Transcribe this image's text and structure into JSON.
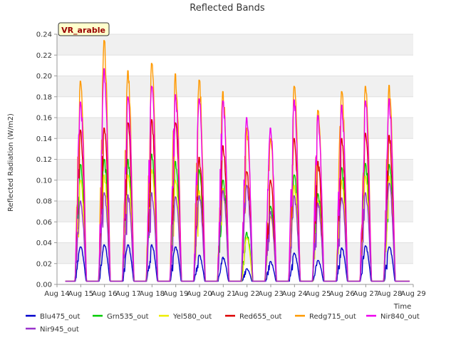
{
  "chart_data": {
    "type": "line",
    "title": "Reflected Bands",
    "xlabel": "Time",
    "ylabel": "Reflected Radiation (W/m2)",
    "ylim": [
      0,
      0.24
    ],
    "yticks": [
      "0.00",
      "0.02",
      "0.04",
      "0.06",
      "0.08",
      "0.10",
      "0.12",
      "0.14",
      "0.16",
      "0.18",
      "0.20",
      "0.22",
      "0.24"
    ],
    "xlim": [
      14,
      29
    ],
    "xticks": [
      "Aug 14",
      "Aug 15",
      "Aug 16",
      "Aug 17",
      "Aug 18",
      "Aug 19",
      "Aug 20",
      "Aug 21",
      "Aug 22",
      "Aug 23",
      "Aug 24",
      "Aug 25",
      "Aug 26",
      "Aug 27",
      "Aug 28",
      "Aug 29"
    ],
    "grid": "horizontal bands",
    "legend_position": "bottom",
    "annotation": "VR_arable",
    "day_start": 14.35,
    "day_end": 28.85,
    "night_value": 0.003,
    "days": [
      15,
      16,
      17,
      18,
      19,
      20,
      21,
      22,
      23,
      24,
      25,
      26,
      27,
      28
    ],
    "series": [
      {
        "name": "Blu475_out",
        "color": "#0000cc",
        "peaks": [
          0.036,
          0.038,
          0.038,
          0.038,
          0.036,
          0.028,
          0.026,
          0.015,
          0.022,
          0.03,
          0.023,
          0.035,
          0.037,
          0.036
        ]
      },
      {
        "name": "Grn535_out",
        "color": "#00cc00",
        "peaks": [
          0.115,
          0.12,
          0.12,
          0.125,
          0.118,
          0.11,
          0.1,
          0.05,
          0.075,
          0.105,
          0.087,
          0.112,
          0.116,
          0.115
        ]
      },
      {
        "name": "Yel580_out",
        "color": "#eeee00",
        "peaks": [
          0.1,
          0.105,
          0.105,
          0.11,
          0.1,
          0.09,
          0.092,
          0.045,
          0.065,
          0.095,
          0.08,
          0.1,
          0.104,
          0.104
        ]
      },
      {
        "name": "Red655_out",
        "color": "#dd0000",
        "peaks": [
          0.148,
          0.15,
          0.155,
          0.158,
          0.155,
          0.122,
          0.133,
          0.108,
          0.1,
          0.14,
          0.118,
          0.14,
          0.145,
          0.143
        ]
      },
      {
        "name": "Redg715_out",
        "color": "#ff9900",
        "peaks": [
          0.195,
          0.234,
          0.205,
          0.212,
          0.202,
          0.196,
          0.185,
          0.15,
          0.14,
          0.19,
          0.167,
          0.185,
          0.19,
          0.191
        ]
      },
      {
        "name": "Nir840_out",
        "color": "#ee00ee",
        "peaks": [
          0.175,
          0.207,
          0.18,
          0.19,
          0.182,
          0.178,
          0.176,
          0.16,
          0.15,
          0.177,
          0.162,
          0.172,
          0.176,
          0.178
        ]
      },
      {
        "name": "Nir945_out",
        "color": "#9933cc",
        "peaks": [
          0.08,
          0.088,
          0.086,
          0.088,
          0.084,
          0.085,
          0.09,
          0.095,
          0.07,
          0.085,
          0.078,
          0.083,
          0.088,
          0.097
        ]
      }
    ]
  }
}
